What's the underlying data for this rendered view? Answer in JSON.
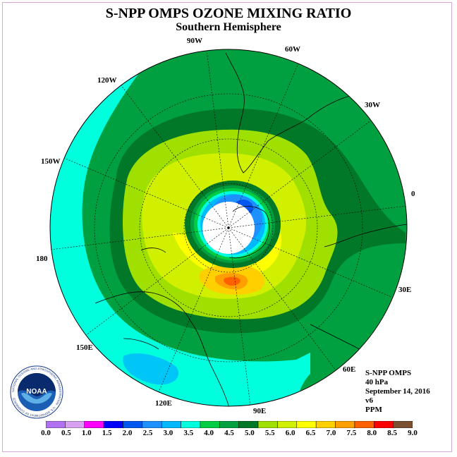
{
  "title": "S-NPP OMPS OZONE MIXING RATIO",
  "subtitle": "Southern Hemisphere",
  "longitude_labels": [
    {
      "text": "90W",
      "lon": -90
    },
    {
      "text": "60W",
      "lon": -60
    },
    {
      "text": "30W",
      "lon": -30
    },
    {
      "text": "0",
      "lon": 0
    },
    {
      "text": "30E",
      "lon": 30
    },
    {
      "text": "60E",
      "lon": 60
    },
    {
      "text": "90E",
      "lon": 90
    },
    {
      "text": "120E",
      "lon": 120
    },
    {
      "text": "150E",
      "lon": 150
    },
    {
      "text": "180",
      "lon": 180
    },
    {
      "text": "150W",
      "lon": -150
    },
    {
      "text": "120W",
      "lon": -120
    }
  ],
  "info": {
    "instrument": "S-NPP OMPS",
    "level": "40 hPa",
    "date": "September 14, 2016",
    "version": "v6",
    "units": "PPM"
  },
  "logo": {
    "text": "NOAA",
    "ring_text": "NATIONAL OCEANIC AND ATMOSPHERIC ADMINISTRATION · U.S. DEPARTMENT OF COMMERCE"
  },
  "colorbar": {
    "labels": [
      "0.0",
      "0.5",
      "1.0",
      "1.5",
      "2.0",
      "2.5",
      "3.0",
      "3.5",
      "4.0",
      "4.5",
      "5.0",
      "5.5",
      "6.0",
      "6.5",
      "7.0",
      "7.5",
      "8.0",
      "8.5",
      "9.0"
    ],
    "colors": [
      "#b070f0",
      "#d8a0f0",
      "#ff00ff",
      "#0000ff",
      "#0058f0",
      "#1e90ff",
      "#00b8ff",
      "#00ffdd",
      "#00cc44",
      "#00a040",
      "#007828",
      "#a0e000",
      "#d0f000",
      "#ffff00",
      "#ffd000",
      "#ffa000",
      "#ff6000",
      "#ff0000",
      "#7a5030"
    ]
  },
  "colors": {
    "ocean_base": "#00a040",
    "frame": "#d8a8d8"
  }
}
